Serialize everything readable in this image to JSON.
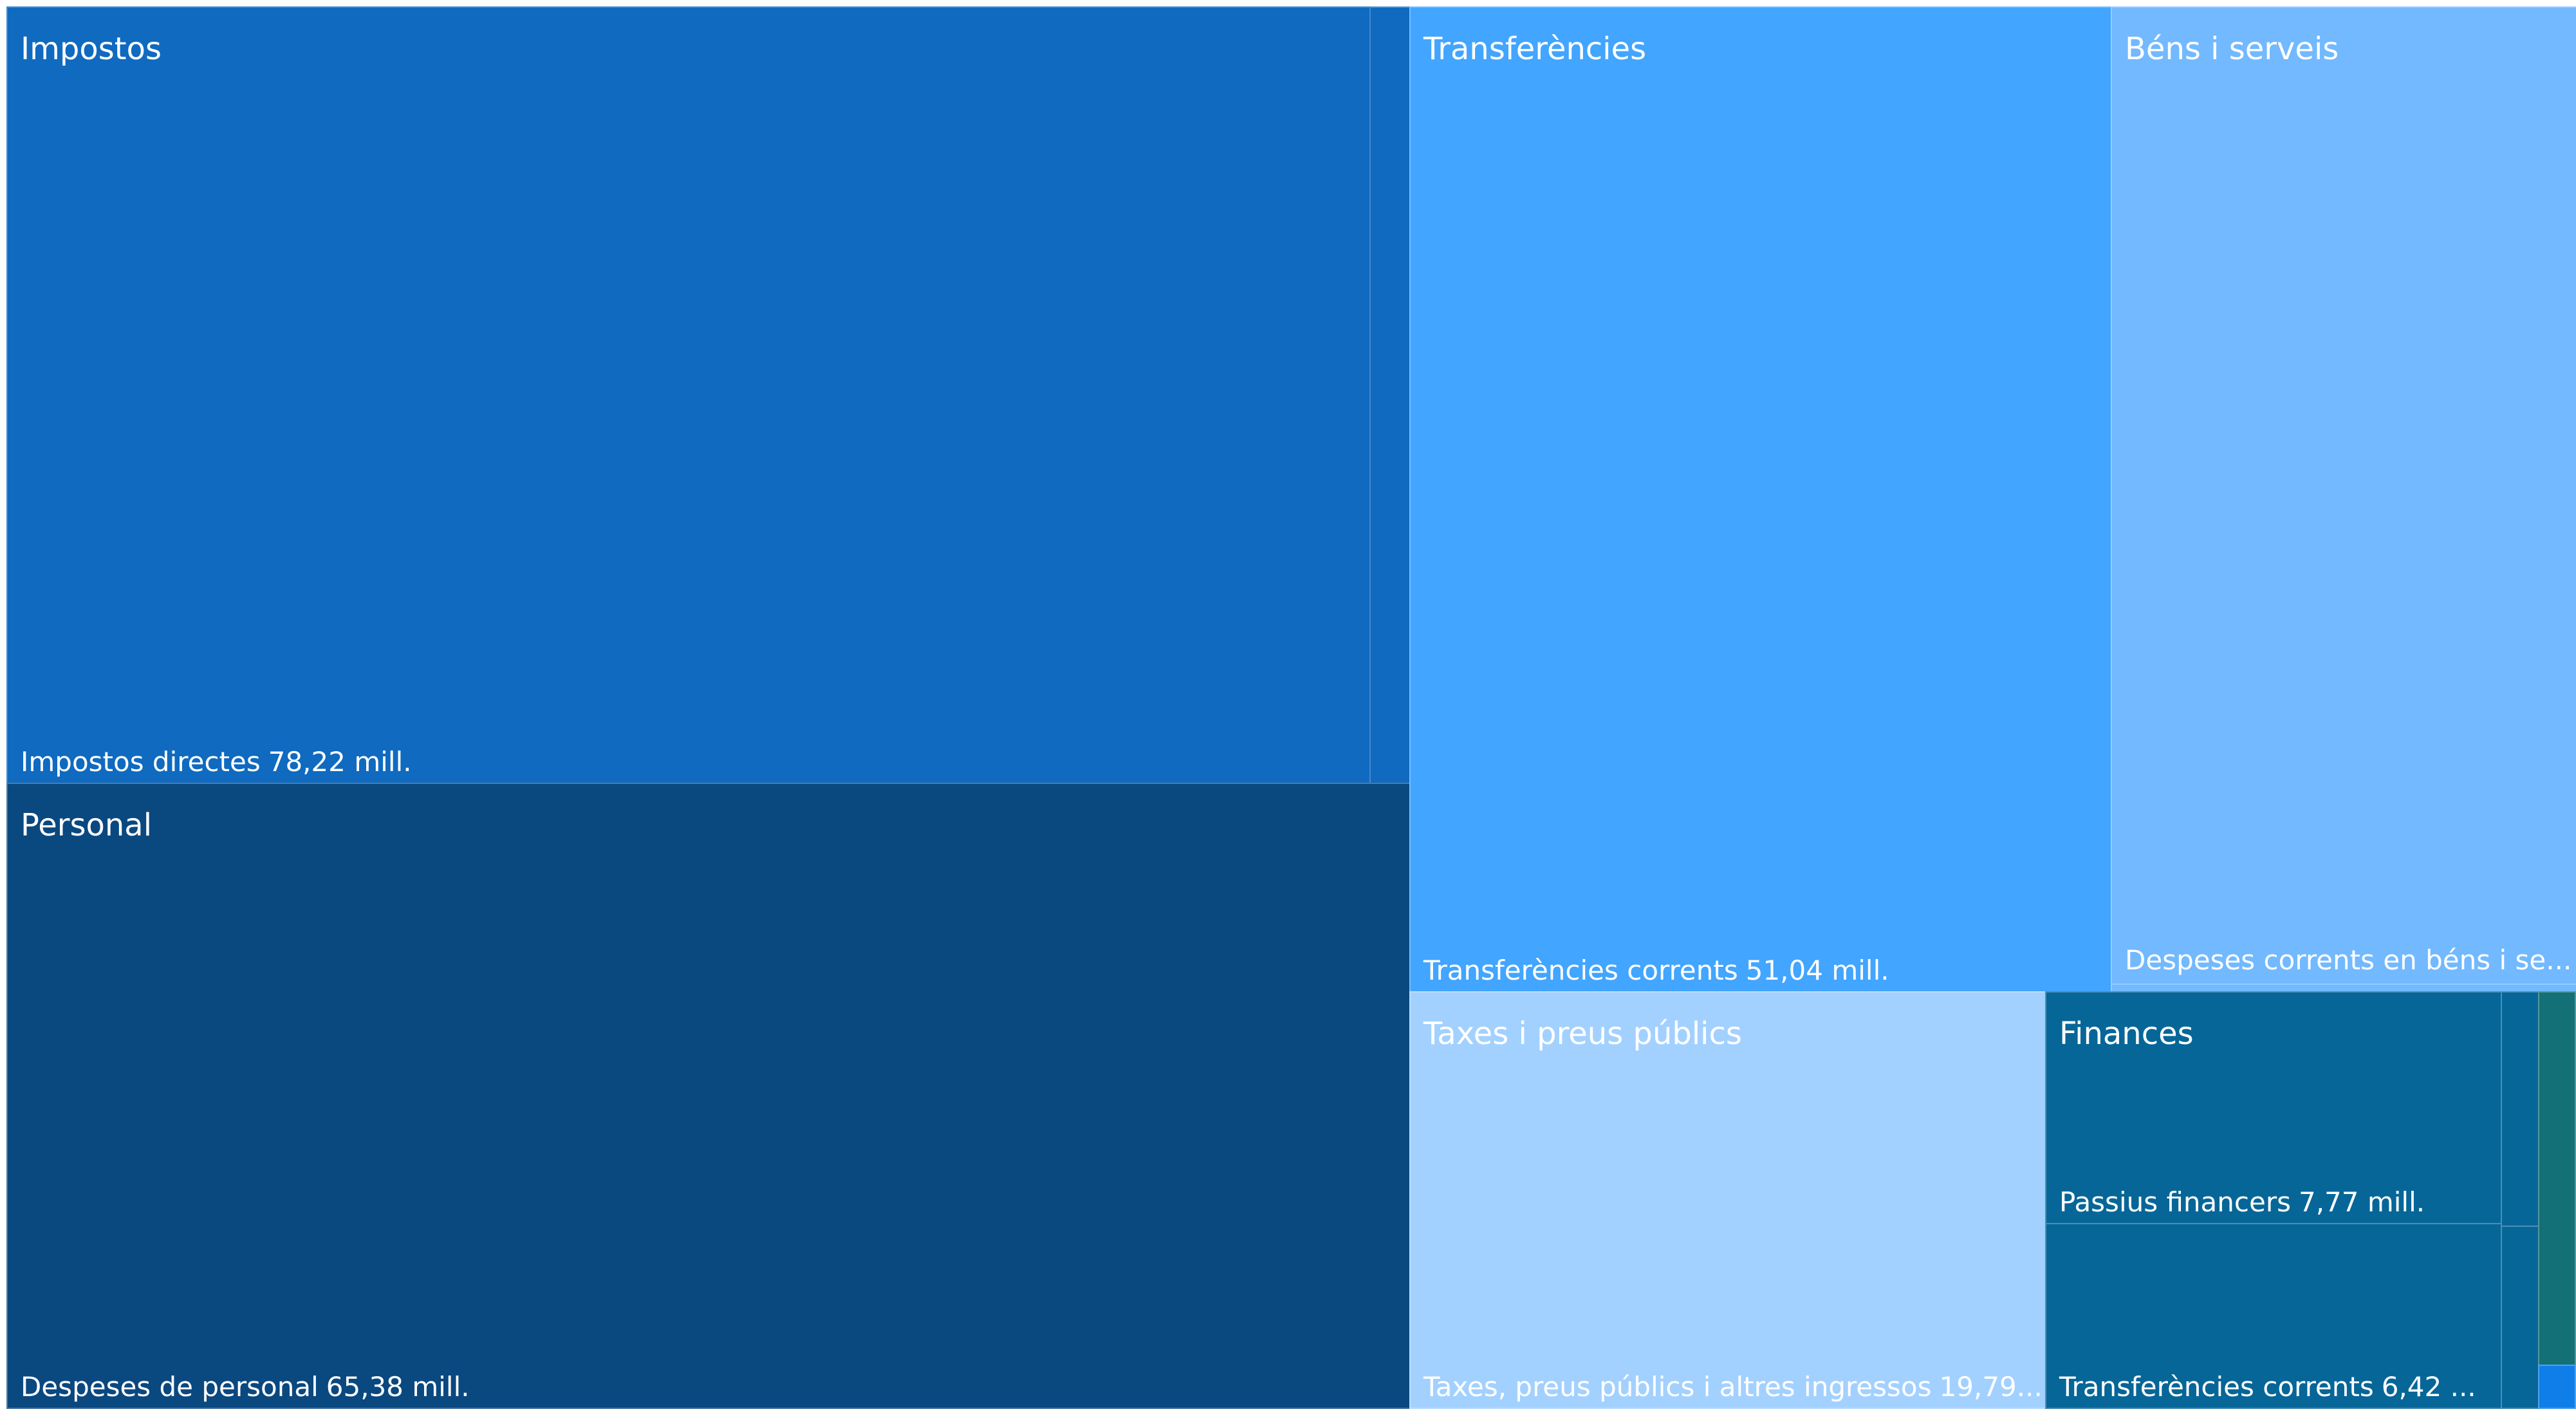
{
  "chart_data": {
    "type": "treemap",
    "colors": {
      "impostos": "#0f6ac0",
      "personal": "#0a4880",
      "transferencies": "#42a5ff",
      "bens": "#72b9ff",
      "taxes": "#a3d1ff",
      "finances": "#066698",
      "other_teal": "#137076",
      "other_blue": "#0f7ee8"
    },
    "groups": [
      {
        "name": "Impostos",
        "items": [
          {
            "name": "Impostos directes",
            "value": 78.22,
            "label": "78,22 mill."
          }
        ]
      },
      {
        "name": "Personal",
        "items": [
          {
            "name": "Despeses de personal",
            "value": 65.38,
            "label": "65,38 mill."
          }
        ]
      },
      {
        "name": "Transferències",
        "items": [
          {
            "name": "Transferències corrents",
            "value": 51.04,
            "label": "51,04 mill."
          }
        ]
      },
      {
        "name": "Béns i serveis",
        "items": [
          {
            "name": "Despeses corrents en béns i se...",
            "value": null,
            "label": ""
          }
        ]
      },
      {
        "name": "Taxes i preus públics",
        "items": [
          {
            "name": "Taxes, preus públics i altres ingressos",
            "value": 19.79,
            "label": "19,79..."
          }
        ]
      },
      {
        "name": "Finances",
        "items": [
          {
            "name": "Passius financers",
            "value": 7.77,
            "label": "7,77 mill."
          },
          {
            "name": "Transferències corrents",
            "value": 6.42,
            "label": "6,42 ..."
          }
        ]
      }
    ]
  }
}
